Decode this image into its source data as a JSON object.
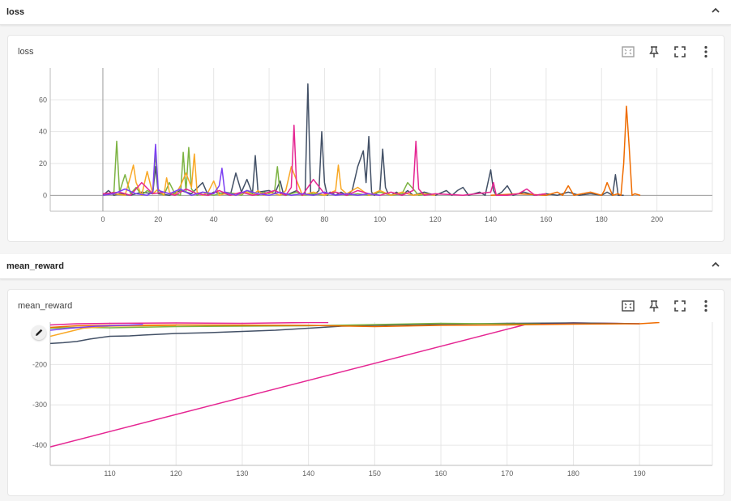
{
  "sections": [
    {
      "title": "loss",
      "card_title": "loss"
    },
    {
      "title": "mean_reward",
      "card_title": "mean_reward"
    }
  ],
  "icons": {
    "collapse": "chevron-up-icon",
    "fit": "fit-to-data-icon",
    "pin": "pin-icon",
    "fullscreen": "fullscreen-icon",
    "more": "more-vert-icon",
    "edit": "edit-pencil-icon"
  },
  "colors": {
    "grey": "#425066",
    "green": "#7cb342",
    "orange": "#ef6c00",
    "yellow": "#f9a825",
    "magenta": "#e52592",
    "purple": "#7b3ff2"
  },
  "chart_data": [
    {
      "type": "line",
      "title": "loss",
      "xlim": [
        -19,
        220
      ],
      "ylim": [
        -10,
        80
      ],
      "xticks": [
        0,
        20,
        40,
        60,
        80,
        100,
        120,
        140,
        160,
        180,
        200
      ],
      "yticks": [
        0,
        20,
        40,
        60
      ],
      "grid": true,
      "series": [
        {
          "color": "grey",
          "x": [
            0,
            2,
            4,
            6,
            10,
            14,
            18,
            19,
            20,
            24,
            28,
            32,
            36,
            38,
            40,
            44,
            46,
            48,
            50,
            52,
            54,
            55,
            56,
            60,
            62,
            64,
            65,
            66,
            70,
            72,
            73,
            74,
            75,
            76,
            78,
            79,
            80,
            81,
            82,
            84,
            86,
            88,
            90,
            92,
            94,
            95,
            96,
            97,
            98,
            100,
            101,
            102,
            103,
            104,
            106,
            108,
            110,
            112,
            116,
            120,
            124,
            126,
            128,
            130,
            132,
            136,
            138,
            140,
            141,
            142,
            144,
            146,
            148,
            152,
            156,
            160,
            164,
            168,
            172,
            176,
            180,
            182,
            184,
            185,
            186,
            188
          ],
          "y": [
            0,
            3,
            0,
            1,
            0,
            2,
            1,
            18,
            1,
            0,
            3,
            1,
            8,
            0,
            2,
            1,
            0,
            14,
            2,
            10,
            1,
            25,
            2,
            3,
            1,
            9,
            2,
            0,
            3,
            0,
            1,
            70,
            2,
            0,
            3,
            40,
            8,
            0,
            2,
            0,
            2,
            0,
            3,
            18,
            28,
            8,
            37,
            2,
            0,
            3,
            29,
            5,
            1,
            0,
            2,
            0,
            3,
            0,
            2,
            0,
            3,
            0,
            3,
            5,
            0,
            2,
            0,
            16,
            3,
            0,
            2,
            6,
            0,
            2,
            0,
            1,
            0,
            2,
            0,
            1,
            0,
            2,
            0,
            13,
            0,
            0
          ]
        },
        {
          "color": "green",
          "x": [
            0,
            2,
            4,
            5,
            6,
            8,
            10,
            12,
            14,
            16,
            18,
            19,
            20,
            22,
            24,
            26,
            28,
            29,
            30,
            31,
            32,
            34,
            36,
            38,
            40,
            44,
            48,
            50,
            52,
            54,
            56,
            58,
            60,
            62,
            63,
            64,
            66,
            70,
            72,
            76,
            80,
            84,
            88,
            92,
            96,
            100,
            104,
            108,
            110,
            114,
            118
          ],
          "y": [
            0,
            1,
            2,
            34,
            2,
            13,
            1,
            5,
            0,
            3,
            1,
            27,
            2,
            0,
            8,
            1,
            0,
            27,
            2,
            30,
            4,
            0,
            2,
            1,
            0,
            2,
            1,
            0,
            3,
            1,
            0,
            2,
            1,
            3,
            18,
            1,
            0,
            2,
            0,
            1,
            0,
            2,
            0,
            1,
            0,
            2,
            0,
            1,
            8,
            0,
            1
          ]
        },
        {
          "color": "yellow",
          "x": [
            0,
            4,
            8,
            10,
            11,
            12,
            14,
            16,
            18,
            20,
            22,
            23,
            24,
            26,
            28,
            30,
            32,
            33,
            34,
            36,
            38,
            40,
            42,
            44,
            48,
            52,
            54,
            56,
            58,
            60,
            62,
            64,
            66,
            68,
            72,
            76,
            80,
            84,
            85,
            86,
            88,
            92,
            96,
            100,
            104,
            108,
            112,
            116,
            120
          ],
          "y": [
            0,
            1,
            0,
            12,
            19,
            8,
            0,
            15,
            1,
            4,
            0,
            11,
            2,
            0,
            6,
            14,
            5,
            26,
            2,
            0,
            2,
            9,
            0,
            1,
            0,
            2,
            0,
            3,
            0,
            2,
            1,
            0,
            3,
            18,
            0,
            2,
            0,
            3,
            19,
            4,
            1,
            5,
            0,
            3,
            0,
            2,
            0,
            1,
            0
          ]
        },
        {
          "color": "orange",
          "x": [
            140,
            150,
            160,
            164,
            166,
            168,
            170,
            176,
            180,
            181,
            182,
            184,
            186,
            187,
            188,
            189,
            190,
            191,
            192,
            194
          ],
          "y": [
            0,
            1,
            0,
            2,
            0,
            6,
            0,
            2,
            0,
            3,
            8,
            0,
            1,
            0,
            20,
            56,
            30,
            0,
            1,
            0
          ]
        },
        {
          "color": "magenta",
          "x": [
            0,
            6,
            10,
            14,
            18,
            22,
            26,
            30,
            34,
            38,
            42,
            46,
            50,
            54,
            58,
            62,
            66,
            68,
            69,
            70,
            72,
            76,
            80,
            84,
            88,
            92,
            96,
            100,
            104,
            108,
            112,
            113,
            114,
            116,
            120,
            130,
            140,
            141,
            142,
            146,
            150,
            153,
            156,
            160
          ],
          "y": [
            1,
            2,
            0,
            8,
            1,
            2,
            0,
            4,
            1,
            0,
            3,
            0,
            2,
            0,
            1,
            3,
            0,
            5,
            44,
            3,
            0,
            10,
            1,
            2,
            0,
            3,
            1,
            0,
            2,
            0,
            3,
            34,
            4,
            0,
            1,
            0,
            2,
            8,
            0,
            0,
            1,
            4,
            0,
            1
          ]
        },
        {
          "color": "purple",
          "x": [
            0,
            4,
            8,
            12,
            16,
            18,
            19,
            20,
            24,
            28,
            32,
            36,
            40,
            42,
            43,
            44,
            48,
            52,
            56,
            60,
            64,
            68,
            72,
            76,
            80,
            84,
            88,
            92,
            96,
            100
          ],
          "y": [
            0,
            1,
            4,
            1,
            0,
            2,
            32,
            3,
            1,
            4,
            0,
            2,
            1,
            6,
            17,
            2,
            0,
            3,
            1,
            0,
            2,
            0,
            1,
            0,
            2,
            0,
            1,
            0,
            1,
            0
          ]
        }
      ]
    },
    {
      "type": "line",
      "title": "mean_reward",
      "xlim": [
        101,
        201
      ],
      "ylim": [
        -450,
        -95
      ],
      "xticks": [
        110,
        120,
        130,
        140,
        150,
        160,
        170,
        180,
        190
      ],
      "yticks": [
        -200,
        -300,
        -400
      ],
      "grid": true,
      "series": [
        {
          "color": "magenta",
          "x": [
            101,
            173,
            180,
            190
          ],
          "y": [
            -404,
            -100,
            -97,
            -99
          ]
        },
        {
          "color": "grey",
          "x": [
            101,
            103,
            105,
            107,
            110,
            113,
            115,
            120,
            125,
            130,
            135,
            140,
            145,
            150,
            160,
            170,
            180,
            190
          ],
          "y": [
            -148,
            -146,
            -143,
            -137,
            -130,
            -129,
            -127,
            -123,
            -121,
            -118,
            -115,
            -110,
            -105,
            -103,
            -100,
            -98,
            -97,
            -99
          ]
        },
        {
          "color": "green",
          "x": [
            101,
            105,
            110,
            120,
            140,
            150,
            160,
            175
          ],
          "y": [
            -110,
            -108,
            -109,
            -106,
            -104,
            -101,
            -98,
            -100
          ]
        },
        {
          "color": "yellow",
          "x": [
            101,
            103,
            106,
            110,
            120
          ],
          "y": [
            -130,
            -122,
            -110,
            -105,
            -103
          ]
        },
        {
          "color": "orange",
          "x": [
            101,
            105,
            110,
            120,
            140,
            150,
            160,
            170,
            180,
            190,
            193
          ],
          "y": [
            -108,
            -104,
            -103,
            -102,
            -103,
            -106,
            -103,
            -102,
            -100,
            -99,
            -96
          ]
        },
        {
          "color": "purple",
          "x": [
            101,
            104,
            108,
            112,
            115
          ],
          "y": [
            -115,
            -110,
            -105,
            -103,
            -101
          ]
        },
        {
          "color": "magenta",
          "x": [
            101,
            105,
            110,
            120,
            130,
            140,
            143
          ],
          "y": [
            -102,
            -99,
            -98,
            -97,
            -98,
            -96,
            -96
          ]
        }
      ]
    }
  ]
}
